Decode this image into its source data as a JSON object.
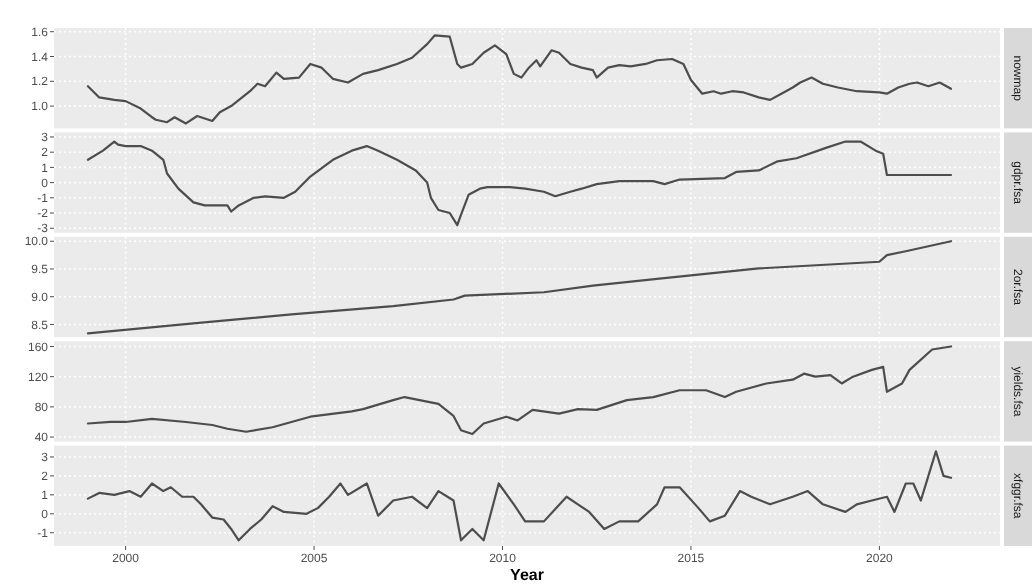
{
  "chart_data": [
    {
      "type": "line",
      "y2label": "nowmap",
      "xlim": [
        1998.1,
        2023.2
      ],
      "xticks": [
        2000,
        2005,
        2010,
        2015,
        2020
      ],
      "ylim": [
        0.82,
        1.63
      ],
      "yticks": [
        {
          "value": 1,
          "label": "1.0"
        },
        1.2,
        1.4,
        1.6
      ],
      "grid": true,
      "tick_labels": "y",
      "series": [
        {
          "color": "#4d4d4d",
          "x": [
            1999.0,
            1999.3,
            1999.7,
            2000.0,
            2000.4,
            2000.7,
            2000.8,
            2001.1,
            2001.3,
            2001.6,
            2001.9,
            2002.3,
            2002.5,
            2002.8,
            2003.3,
            2003.5,
            2003.7,
            2004.0,
            2004.2,
            2004.6,
            2004.9,
            2005.2,
            2005.5,
            2005.9,
            2006.3,
            2006.7,
            2007.2,
            2007.6,
            2008.0,
            2008.2,
            2008.6,
            2008.8,
            2008.9,
            2009.2,
            2009.5,
            2009.8,
            2010.1,
            2010.3,
            2010.5,
            2010.7,
            2010.9,
            2011.0,
            2011.3,
            2011.5,
            2011.8,
            2012.1,
            2012.4,
            2012.5,
            2012.8,
            2013.1,
            2013.4,
            2013.8,
            2014.1,
            2014.5,
            2014.8,
            2015.0,
            2015.3,
            2015.6,
            2015.8,
            2016.1,
            2016.4,
            2016.8,
            2017.1,
            2017.4,
            2017.7,
            2017.9,
            2018.2,
            2018.5,
            2018.9,
            2019.4,
            2020.0,
            2020.2,
            2020.5,
            2020.8,
            2021.0,
            2021.3,
            2021.6,
            2021.9
          ],
          "values": [
            1.16,
            1.07,
            1.05,
            1.04,
            0.98,
            0.91,
            0.89,
            0.87,
            0.91,
            0.86,
            0.92,
            0.88,
            0.95,
            1.0,
            1.12,
            1.18,
            1.16,
            1.27,
            1.22,
            1.23,
            1.34,
            1.31,
            1.22,
            1.19,
            1.26,
            1.29,
            1.34,
            1.39,
            1.5,
            1.57,
            1.56,
            1.34,
            1.31,
            1.34,
            1.43,
            1.49,
            1.42,
            1.26,
            1.23,
            1.31,
            1.37,
            1.32,
            1.45,
            1.43,
            1.34,
            1.31,
            1.29,
            1.23,
            1.31,
            1.33,
            1.32,
            1.34,
            1.37,
            1.38,
            1.34,
            1.21,
            1.1,
            1.12,
            1.1,
            1.12,
            1.11,
            1.07,
            1.05,
            1.1,
            1.15,
            1.19,
            1.23,
            1.18,
            1.15,
            1.12,
            1.11,
            1.1,
            1.15,
            1.18,
            1.19,
            1.16,
            1.19,
            1.14
          ]
        }
      ]
    },
    {
      "type": "line",
      "y2label": "gdpr.fsa",
      "xlim": [
        1998.1,
        2023.2
      ],
      "xticks": [
        2000,
        2005,
        2010,
        2015,
        2020
      ],
      "ylim": [
        -3.3,
        3.3
      ],
      "yticks": [
        -3,
        -2,
        -1,
        0,
        1,
        2,
        3
      ],
      "grid": true,
      "tick_labels": "y",
      "series": [
        {
          "color": "#4d4d4d",
          "x": [
            1999.0,
            1999.4,
            1999.7,
            1999.8,
            2000.0,
            2000.4,
            2000.7,
            2001.0,
            2001.1,
            2001.4,
            2001.8,
            2002.1,
            2002.5,
            2002.7,
            2002.8,
            2003.0,
            2003.4,
            2003.7,
            2004.2,
            2004.5,
            2004.9,
            2005.5,
            2006.0,
            2006.4,
            2006.7,
            2007.2,
            2007.7,
            2008.0,
            2008.1,
            2008.3,
            2008.6,
            2008.8,
            2008.9,
            2009.1,
            2009.4,
            2009.6,
            2010.2,
            2010.6,
            2011.1,
            2011.4,
            2011.8,
            2012.1,
            2012.5,
            2013.1,
            2014.0,
            2014.3,
            2014.7,
            2015.9,
            2016.2,
            2016.8,
            2017.3,
            2017.8,
            2018.6,
            2019.1,
            2019.5,
            2019.9,
            2020.1,
            2020.2,
            2021.9
          ],
          "values": [
            1.5,
            2.1,
            2.7,
            2.5,
            2.4,
            2.4,
            2.1,
            1.5,
            0.6,
            -0.4,
            -1.3,
            -1.5,
            -1.5,
            -1.5,
            -1.9,
            -1.5,
            -1.0,
            -0.9,
            -1.0,
            -0.6,
            0.4,
            1.5,
            2.1,
            2.4,
            2.1,
            1.5,
            0.8,
            0.0,
            -1.0,
            -1.8,
            -2.0,
            -2.8,
            -2.1,
            -0.8,
            -0.4,
            -0.3,
            -0.3,
            -0.4,
            -0.6,
            -0.9,
            -0.6,
            -0.4,
            -0.1,
            0.1,
            0.1,
            -0.1,
            0.2,
            0.3,
            0.7,
            0.8,
            1.4,
            1.6,
            2.3,
            2.7,
            2.7,
            2.1,
            1.9,
            0.5,
            0.5
          ]
        }
      ]
    },
    {
      "type": "line",
      "y2label": "2or.fsa",
      "xlim": [
        1998.1,
        2023.2
      ],
      "xticks": [
        2000,
        2005,
        2010,
        2015,
        2020
      ],
      "ylim": [
        8.27,
        10.08
      ],
      "yticks": [
        8.5,
        {
          "value": 9,
          "label": "9.0"
        },
        9.5,
        {
          "value": 10,
          "label": "10.0"
        }
      ],
      "grid": true,
      "tick_labels": "y",
      "series": [
        {
          "color": "#4d4d4d",
          "x": [
            1999.0,
            2001.8,
            2004.4,
            2007.1,
            2008.7,
            2009.0,
            2011.1,
            2012.4,
            2014.1,
            2016.8,
            2020.0,
            2020.2,
            2020.7,
            2021.9
          ],
          "values": [
            8.34,
            8.52,
            8.68,
            8.83,
            8.95,
            9.02,
            9.08,
            9.2,
            9.32,
            9.51,
            9.63,
            9.75,
            9.82,
            10.0
          ]
        }
      ]
    },
    {
      "type": "line",
      "y2label": "yields.fsa",
      "xlim": [
        1998.1,
        2023.2
      ],
      "xticks": [
        2000,
        2005,
        2010,
        2015,
        2020
      ],
      "ylim": [
        34,
        167
      ],
      "yticks": [
        40,
        80,
        120,
        160
      ],
      "grid": true,
      "tick_labels": "y",
      "series": [
        {
          "color": "#4d4d4d",
          "x": [
            1999.0,
            1999.6,
            2000.0,
            2000.7,
            2001.6,
            2002.3,
            2002.7,
            2003.2,
            2003.9,
            2004.9,
            2006.0,
            2006.3,
            2007.1,
            2007.4,
            2007.8,
            2008.3,
            2008.7,
            2008.9,
            2009.2,
            2009.5,
            2010.1,
            2010.4,
            2010.8,
            2011.5,
            2012.0,
            2012.5,
            2013.3,
            2014.0,
            2014.7,
            2015.4,
            2015.9,
            2016.2,
            2017.0,
            2017.7,
            2018.0,
            2018.3,
            2018.7,
            2019.0,
            2019.3,
            2019.8,
            2020.1,
            2020.2,
            2020.6,
            2020.8,
            2021.4,
            2021.9
          ],
          "values": [
            58,
            60,
            60,
            64,
            60,
            56,
            51,
            47,
            53,
            67,
            74,
            77,
            89,
            93,
            89,
            84,
            68,
            49,
            44,
            58,
            67,
            62,
            76,
            71,
            77,
            76,
            89,
            93,
            102,
            102,
            93,
            100,
            111,
            116,
            124,
            120,
            122,
            111,
            120,
            129,
            133,
            100,
            111,
            129,
            156,
            160
          ]
        }
      ]
    },
    {
      "type": "line",
      "y2label": "xfggr.fsa",
      "xlabel": "Year",
      "xlim": [
        1998.1,
        2023.2
      ],
      "xticks": [
        2000,
        2005,
        2010,
        2015,
        2020
      ],
      "ylim": [
        -1.7,
        3.6
      ],
      "yticks": [
        -1,
        0,
        1,
        2,
        3
      ],
      "grid": true,
      "series": [
        {
          "color": "#4d4d4d",
          "x": [
            1999.0,
            1999.3,
            1999.7,
            2000.1,
            2000.4,
            2000.7,
            2001.0,
            2001.2,
            2001.5,
            2001.8,
            2002.0,
            2002.3,
            2002.6,
            2002.8,
            2003.0,
            2003.3,
            2003.6,
            2003.9,
            2004.2,
            2004.8,
            2005.1,
            2005.4,
            2005.7,
            2005.9,
            2006.4,
            2006.7,
            2007.1,
            2007.6,
            2008.0,
            2008.3,
            2008.7,
            2008.9,
            2009.2,
            2009.5,
            2009.9,
            2010.3,
            2010.6,
            2011.1,
            2011.7,
            2012.0,
            2012.3,
            2012.7,
            2013.1,
            2013.6,
            2014.1,
            2014.3,
            2014.7,
            2015.2,
            2015.5,
            2015.9,
            2016.3,
            2016.6,
            2017.1,
            2017.7,
            2018.1,
            2018.5,
            2019.1,
            2019.4,
            2019.8,
            2020.2,
            2020.4,
            2020.7,
            2020.9,
            2021.1,
            2021.3,
            2021.5,
            2021.7,
            2021.9
          ],
          "values": [
            0.8,
            1.1,
            1.0,
            1.2,
            0.9,
            1.6,
            1.2,
            1.4,
            0.9,
            0.9,
            0.5,
            -0.2,
            -0.3,
            -0.8,
            -1.4,
            -0.8,
            -0.3,
            0.4,
            0.1,
            0.0,
            0.3,
            0.9,
            1.6,
            1.0,
            1.6,
            -0.1,
            0.7,
            0.9,
            0.3,
            1.2,
            0.7,
            -1.4,
            -0.8,
            -1.4,
            1.6,
            0.5,
            -0.4,
            -0.4,
            0.9,
            0.5,
            0.1,
            -0.8,
            -0.4,
            -0.4,
            0.5,
            1.4,
            1.4,
            0.3,
            -0.4,
            -0.1,
            1.2,
            0.9,
            0.5,
            0.9,
            1.2,
            0.5,
            0.1,
            0.5,
            0.7,
            0.9,
            0.1,
            1.6,
            1.6,
            0.7,
            2.0,
            3.3,
            2.0,
            1.9
          ]
        }
      ]
    }
  ]
}
